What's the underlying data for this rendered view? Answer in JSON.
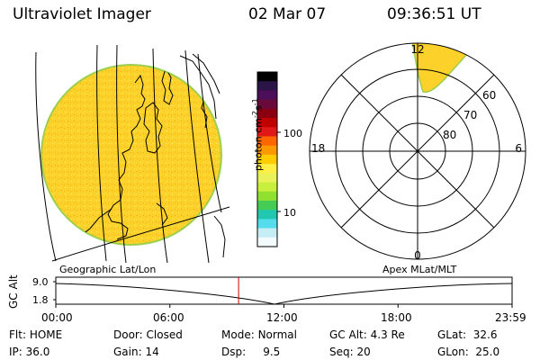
{
  "header": {
    "title": "Ultraviolet Imager",
    "date": "02 Mar 07",
    "time": "09:36:51 UT"
  },
  "colorbar": {
    "label_main": "photon cm",
    "label_sup1": "-2",
    "label_s": "s",
    "label_sup2": "-1",
    "ticks": [
      "100",
      "10"
    ],
    "colors": [
      "#000000",
      "#2b1447",
      "#4b0f5a",
      "#6a0a3a",
      "#8a0010",
      "#c00000",
      "#e01818",
      "#ff6600",
      "#ff9900",
      "#ffcc00",
      "#ffee44",
      "#eaf25a",
      "#c8ef3c",
      "#90e030",
      "#44cc55",
      "#22c7b0",
      "#55ddee",
      "#c6ecf4",
      "#f4fbfd"
    ]
  },
  "polar": {
    "mlt_labels": [
      "12",
      "6",
      "0",
      "18"
    ],
    "lat_labels": [
      "60",
      "70",
      "80"
    ]
  },
  "altitude_panel": {
    "ylabel": "GC Alt",
    "yticks": [
      "9.0",
      "1.8"
    ],
    "left_caption": "Geographic Lat/Lon",
    "right_caption": "Apex  MLat/MLT",
    "time_ticks": [
      "00:00",
      "06:00",
      "12:00",
      "18:00",
      "23:59"
    ],
    "marker_time_fraction": 0.4006
  },
  "info": {
    "row1": [
      {
        "label": "Flt:",
        "value": "HOME"
      },
      {
        "label": "Door:",
        "value": "Closed"
      },
      {
        "label": "Mode:",
        "value": "Normal"
      },
      {
        "label": "GC Alt:",
        "value": "4.3 Re"
      },
      {
        "label": "GLat:",
        "value": "32.6"
      }
    ],
    "row2": [
      {
        "label": "IP:",
        "value": "36.0"
      },
      {
        "label": "Gain:",
        "value": "14"
      },
      {
        "label": "Dsp:",
        "value": "9.5"
      },
      {
        "label": "Seq:",
        "value": "20"
      },
      {
        "label": "GLon:",
        "value": "25.0"
      }
    ]
  },
  "colors": {
    "image_fill": "#fbd12a",
    "image_edge": "#9ccf4d",
    "marker": "#cc0000"
  }
}
